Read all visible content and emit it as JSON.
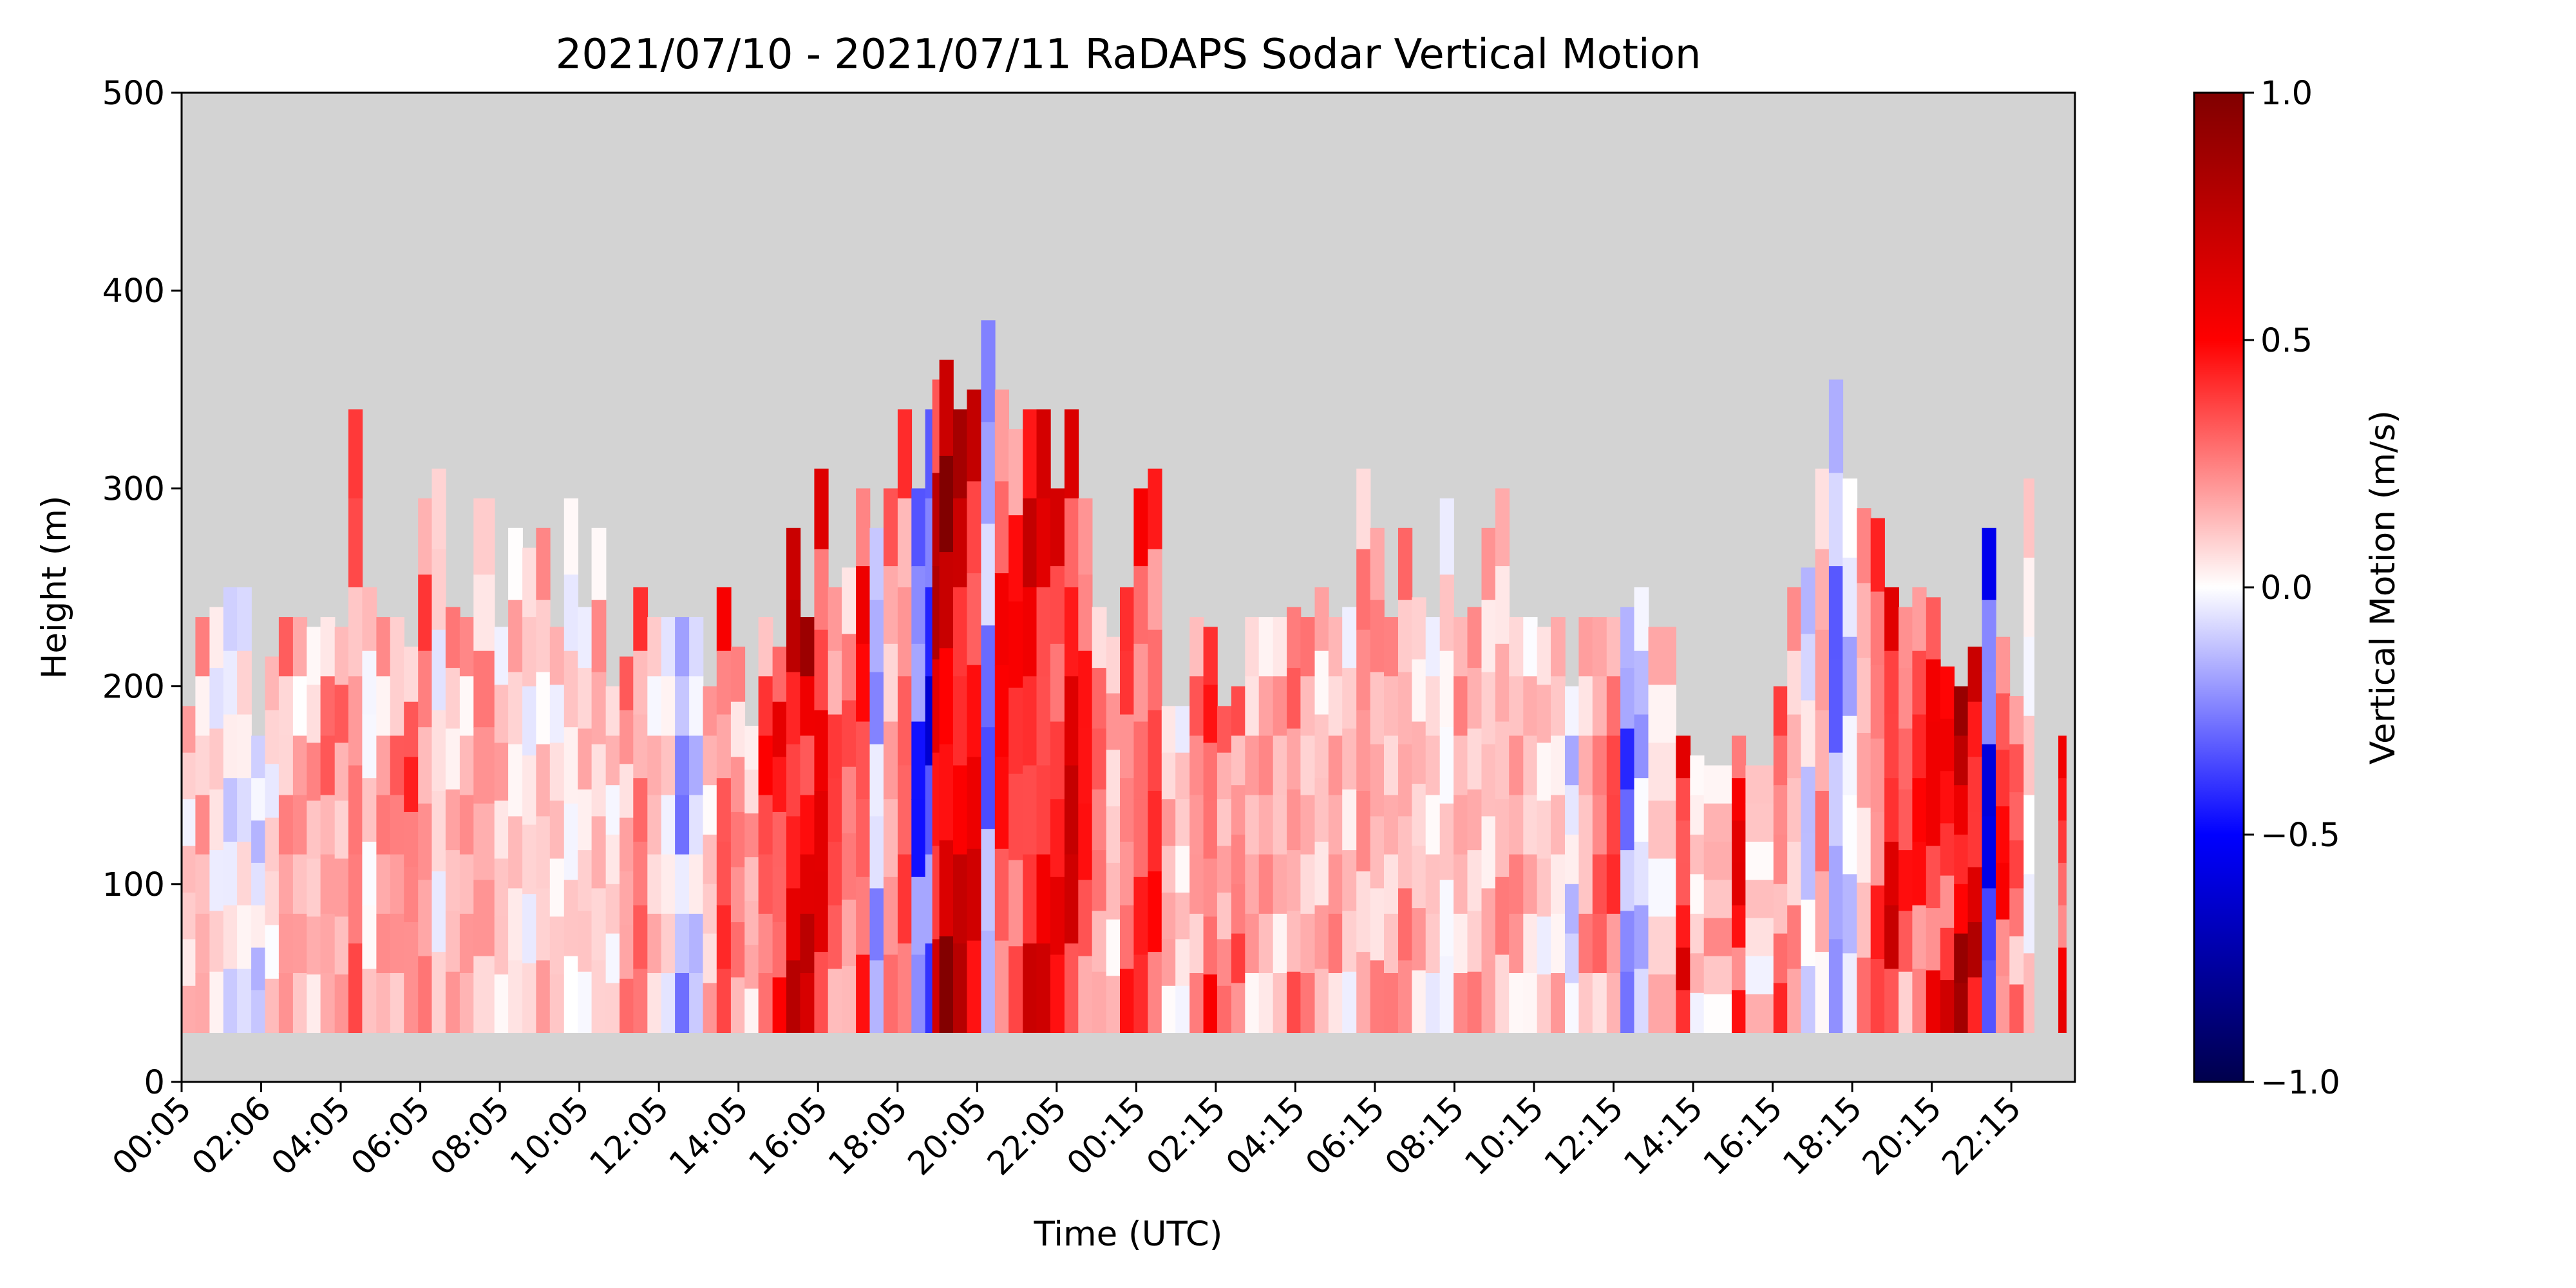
{
  "chart_data": {
    "type": "heatmap",
    "title": "2021/07/10 - 2021/07/11 RaDAPS Sodar Vertical Motion",
    "xlabel": "Time (UTC)",
    "ylabel": "Height (m)",
    "ylim": [
      0,
      500
    ],
    "yticks": [
      "0",
      "100",
      "200",
      "300",
      "400",
      "500"
    ],
    "xticks": [
      "00:05",
      "02:06",
      "04:05",
      "06:05",
      "08:05",
      "10:05",
      "12:05",
      "14:05",
      "16:05",
      "18:05",
      "20:05",
      "22:05",
      "00:15",
      "02:15",
      "04:15",
      "06:15",
      "08:15",
      "10:15",
      "12:15",
      "14:15",
      "16:15",
      "18:15",
      "20:15",
      "22:15"
    ],
    "background_color": "#d3d3d3",
    "colorbar": {
      "label": "Vertical Motion (m/s)",
      "range": [
        -1.0,
        1.0
      ],
      "ticks": [
        "−1.0",
        "−0.5",
        "0.0",
        "0.5",
        "1.0"
      ],
      "colormap": "seismic",
      "colors": [
        "#00004c",
        "#0000ff",
        "#ffffff",
        "#ff0000",
        "#800000"
      ]
    },
    "data_bottom_height": 25,
    "columns": [
      {
        "t": 0.0,
        "top": 190,
        "v": 0.12
      },
      {
        "t": 0.33,
        "top": 235,
        "v": 0.2
      },
      {
        "t": 0.67,
        "top": 240,
        "v": 0.05
      },
      {
        "t": 1.0,
        "top": 250,
        "v": -0.05
      },
      {
        "t": 1.33,
        "top": 250,
        "v": 0.02
      },
      {
        "t": 1.67,
        "top": 175,
        "v": -0.1
      },
      {
        "t": 2.0,
        "top": 215,
        "v": 0.08
      },
      {
        "t": 2.33,
        "top": 235,
        "v": 0.25
      },
      {
        "t": 2.67,
        "top": 235,
        "v": 0.22
      },
      {
        "t": 3.0,
        "top": 230,
        "v": 0.18
      },
      {
        "t": 3.33,
        "top": 235,
        "v": 0.3
      },
      {
        "t": 3.67,
        "top": 230,
        "v": 0.24
      },
      {
        "t": 4.0,
        "top": 340,
        "v": 0.35
      },
      {
        "t": 4.33,
        "top": 250,
        "v": 0.05
      },
      {
        "t": 4.67,
        "top": 235,
        "v": 0.26
      },
      {
        "t": 5.0,
        "top": 235,
        "v": 0.3
      },
      {
        "t": 5.33,
        "top": 220,
        "v": 0.4
      },
      {
        "t": 5.67,
        "top": 295,
        "v": 0.32
      },
      {
        "t": 6.0,
        "top": 310,
        "v": 0.05
      },
      {
        "t": 6.33,
        "top": 240,
        "v": 0.18
      },
      {
        "t": 6.67,
        "top": 235,
        "v": 0.22
      },
      {
        "t": 7.0,
        "top": 295,
        "v": 0.25
      },
      {
        "t": 7.5,
        "top": 230,
        "v": 0.15
      },
      {
        "t": 7.83,
        "top": 280,
        "v": 0.12
      },
      {
        "t": 8.17,
        "top": 270,
        "v": 0.05
      },
      {
        "t": 8.5,
        "top": 280,
        "v": 0.15
      },
      {
        "t": 8.83,
        "top": 230,
        "v": 0.1
      },
      {
        "t": 9.17,
        "top": 295,
        "v": 0.05
      },
      {
        "t": 9.5,
        "top": 240,
        "v": 0.12
      },
      {
        "t": 9.83,
        "top": 280,
        "v": 0.18
      },
      {
        "t": 10.17,
        "top": 200,
        "v": 0.08
      },
      {
        "t": 10.5,
        "top": 215,
        "v": 0.25
      },
      {
        "t": 10.83,
        "top": 250,
        "v": 0.35
      },
      {
        "t": 11.17,
        "top": 235,
        "v": 0.15
      },
      {
        "t": 11.5,
        "top": 235,
        "v": 0.05
      },
      {
        "t": 11.83,
        "top": 235,
        "v": -0.25
      },
      {
        "t": 12.17,
        "top": 235,
        "v": -0.1
      },
      {
        "t": 12.5,
        "top": 200,
        "v": 0.15
      },
      {
        "t": 12.83,
        "top": 250,
        "v": 0.45
      },
      {
        "t": 13.17,
        "top": 220,
        "v": 0.3
      },
      {
        "t": 13.5,
        "top": 180,
        "v": 0.2
      },
      {
        "t": 13.83,
        "top": 235,
        "v": 0.5
      },
      {
        "t": 14.17,
        "top": 220,
        "v": 0.55
      },
      {
        "t": 14.5,
        "top": 280,
        "v": 0.75
      },
      {
        "t": 14.83,
        "top": 235,
        "v": 0.8
      },
      {
        "t": 15.17,
        "top": 310,
        "v": 0.7
      },
      {
        "t": 15.5,
        "top": 250,
        "v": 0.45
      },
      {
        "t": 15.83,
        "top": 260,
        "v": 0.35
      },
      {
        "t": 16.17,
        "top": 300,
        "v": 0.55
      },
      {
        "t": 16.5,
        "top": 280,
        "v": -0.2
      },
      {
        "t": 16.83,
        "top": 300,
        "v": 0.25
      },
      {
        "t": 17.17,
        "top": 340,
        "v": 0.4
      },
      {
        "t": 17.5,
        "top": 300,
        "v": -0.45
      },
      {
        "t": 17.83,
        "top": 340,
        "v": -0.55
      },
      {
        "t": 18.0,
        "top": 355,
        "v": 0.85
      },
      {
        "t": 18.17,
        "top": 365,
        "v": 0.95
      },
      {
        "t": 18.5,
        "top": 340,
        "v": 0.8
      },
      {
        "t": 18.83,
        "top": 350,
        "v": 0.7
      },
      {
        "t": 19.17,
        "top": 385,
        "v": -0.3
      },
      {
        "t": 19.5,
        "top": 350,
        "v": 0.6
      },
      {
        "t": 19.83,
        "top": 330,
        "v": 0.55
      },
      {
        "t": 20.17,
        "top": 340,
        "v": 0.7
      },
      {
        "t": 20.5,
        "top": 340,
        "v": 0.65
      },
      {
        "t": 20.83,
        "top": 300,
        "v": 0.6
      },
      {
        "t": 21.17,
        "top": 340,
        "v": 0.8
      },
      {
        "t": 21.5,
        "top": 295,
        "v": 0.55
      },
      {
        "t": 21.83,
        "top": 240,
        "v": 0.35
      },
      {
        "t": 22.17,
        "top": 225,
        "v": 0.15
      },
      {
        "t": 22.5,
        "top": 250,
        "v": 0.4
      },
      {
        "t": 22.83,
        "top": 300,
        "v": 0.45
      },
      {
        "t": 23.17,
        "top": 310,
        "v": 0.5
      },
      {
        "t": 23.5,
        "top": 190,
        "v": 0.2
      },
      {
        "t": 23.83,
        "top": 190,
        "v": 0.1
      },
      {
        "t": 24.17,
        "top": 235,
        "v": 0.3
      },
      {
        "t": 24.5,
        "top": 230,
        "v": 0.45
      },
      {
        "t": 24.83,
        "top": 190,
        "v": 0.25
      },
      {
        "t": 25.17,
        "top": 200,
        "v": 0.35
      },
      {
        "t": 25.5,
        "top": 235,
        "v": 0.2
      },
      {
        "t": 25.83,
        "top": 235,
        "v": 0.25
      },
      {
        "t": 26.17,
        "top": 235,
        "v": 0.18
      },
      {
        "t": 26.5,
        "top": 240,
        "v": 0.3
      },
      {
        "t": 26.83,
        "top": 235,
        "v": 0.2
      },
      {
        "t": 27.17,
        "top": 250,
        "v": 0.15
      },
      {
        "t": 27.5,
        "top": 235,
        "v": 0.25
      },
      {
        "t": 27.83,
        "top": 240,
        "v": 0.12
      },
      {
        "t": 28.17,
        "top": 310,
        "v": 0.28
      },
      {
        "t": 28.5,
        "top": 280,
        "v": 0.22
      },
      {
        "t": 28.83,
        "top": 235,
        "v": 0.18
      },
      {
        "t": 29.17,
        "top": 280,
        "v": 0.25
      },
      {
        "t": 29.5,
        "top": 245,
        "v": 0.15
      },
      {
        "t": 29.83,
        "top": 235,
        "v": 0.1
      },
      {
        "t": 30.17,
        "top": 295,
        "v": 0.05
      },
      {
        "t": 30.5,
        "top": 235,
        "v": 0.22
      },
      {
        "t": 30.83,
        "top": 240,
        "v": 0.18
      },
      {
        "t": 31.17,
        "top": 280,
        "v": 0.15
      },
      {
        "t": 31.5,
        "top": 300,
        "v": 0.2
      },
      {
        "t": 31.83,
        "top": 235,
        "v": 0.25
      },
      {
        "t": 32.17,
        "top": 235,
        "v": 0.15
      },
      {
        "t": 32.5,
        "top": 230,
        "v": 0.1
      },
      {
        "t": 32.83,
        "top": 235,
        "v": 0.12
      },
      {
        "t": 33.17,
        "top": 200,
        "v": -0.1
      },
      {
        "t": 33.5,
        "top": 235,
        "v": 0.2
      },
      {
        "t": 33.83,
        "top": 235,
        "v": 0.35
      },
      {
        "t": 34.17,
        "top": 235,
        "v": 0.45
      },
      {
        "t": 34.5,
        "top": 240,
        "v": -0.35
      },
      {
        "t": 34.83,
        "top": 250,
        "v": -0.15
      },
      {
        "t": 35.17,
        "top": 230,
        "v": 0.1
      },
      {
        "t": 35.83,
        "top": 175,
        "v": 0.6
      },
      {
        "t": 36.17,
        "top": 165,
        "v": 0.1
      },
      {
        "t": 36.5,
        "top": 160,
        "v": 0.2
      },
      {
        "t": 37.17,
        "top": 175,
        "v": 0.7
      },
      {
        "t": 37.5,
        "top": 160,
        "v": 0.1
      },
      {
        "t": 38.17,
        "top": 200,
        "v": 0.35
      },
      {
        "t": 38.5,
        "top": 250,
        "v": 0.2
      },
      {
        "t": 38.83,
        "top": 260,
        "v": -0.1
      },
      {
        "t": 39.17,
        "top": 310,
        "v": 0.25
      },
      {
        "t": 39.5,
        "top": 355,
        "v": -0.3
      },
      {
        "t": 39.83,
        "top": 305,
        "v": -0.1
      },
      {
        "t": 40.17,
        "top": 290,
        "v": 0.2
      },
      {
        "t": 40.5,
        "top": 285,
        "v": 0.4
      },
      {
        "t": 40.83,
        "top": 250,
        "v": 0.7
      },
      {
        "t": 41.17,
        "top": 240,
        "v": 0.45
      },
      {
        "t": 41.5,
        "top": 250,
        "v": 0.55
      },
      {
        "t": 41.83,
        "top": 245,
        "v": 0.65
      },
      {
        "t": 42.17,
        "top": 210,
        "v": 0.6
      },
      {
        "t": 42.5,
        "top": 200,
        "v": 0.9
      },
      {
        "t": 42.83,
        "top": 220,
        "v": 0.75
      },
      {
        "t": 43.17,
        "top": 280,
        "v": -0.6
      },
      {
        "t": 43.5,
        "top": 225,
        "v": 0.55
      },
      {
        "t": 43.83,
        "top": 195,
        "v": 0.4
      },
      {
        "t": 44.17,
        "top": 305,
        "v": 0.05
      },
      {
        "t": 45.0,
        "top": 175,
        "v": 0.55
      }
    ]
  }
}
